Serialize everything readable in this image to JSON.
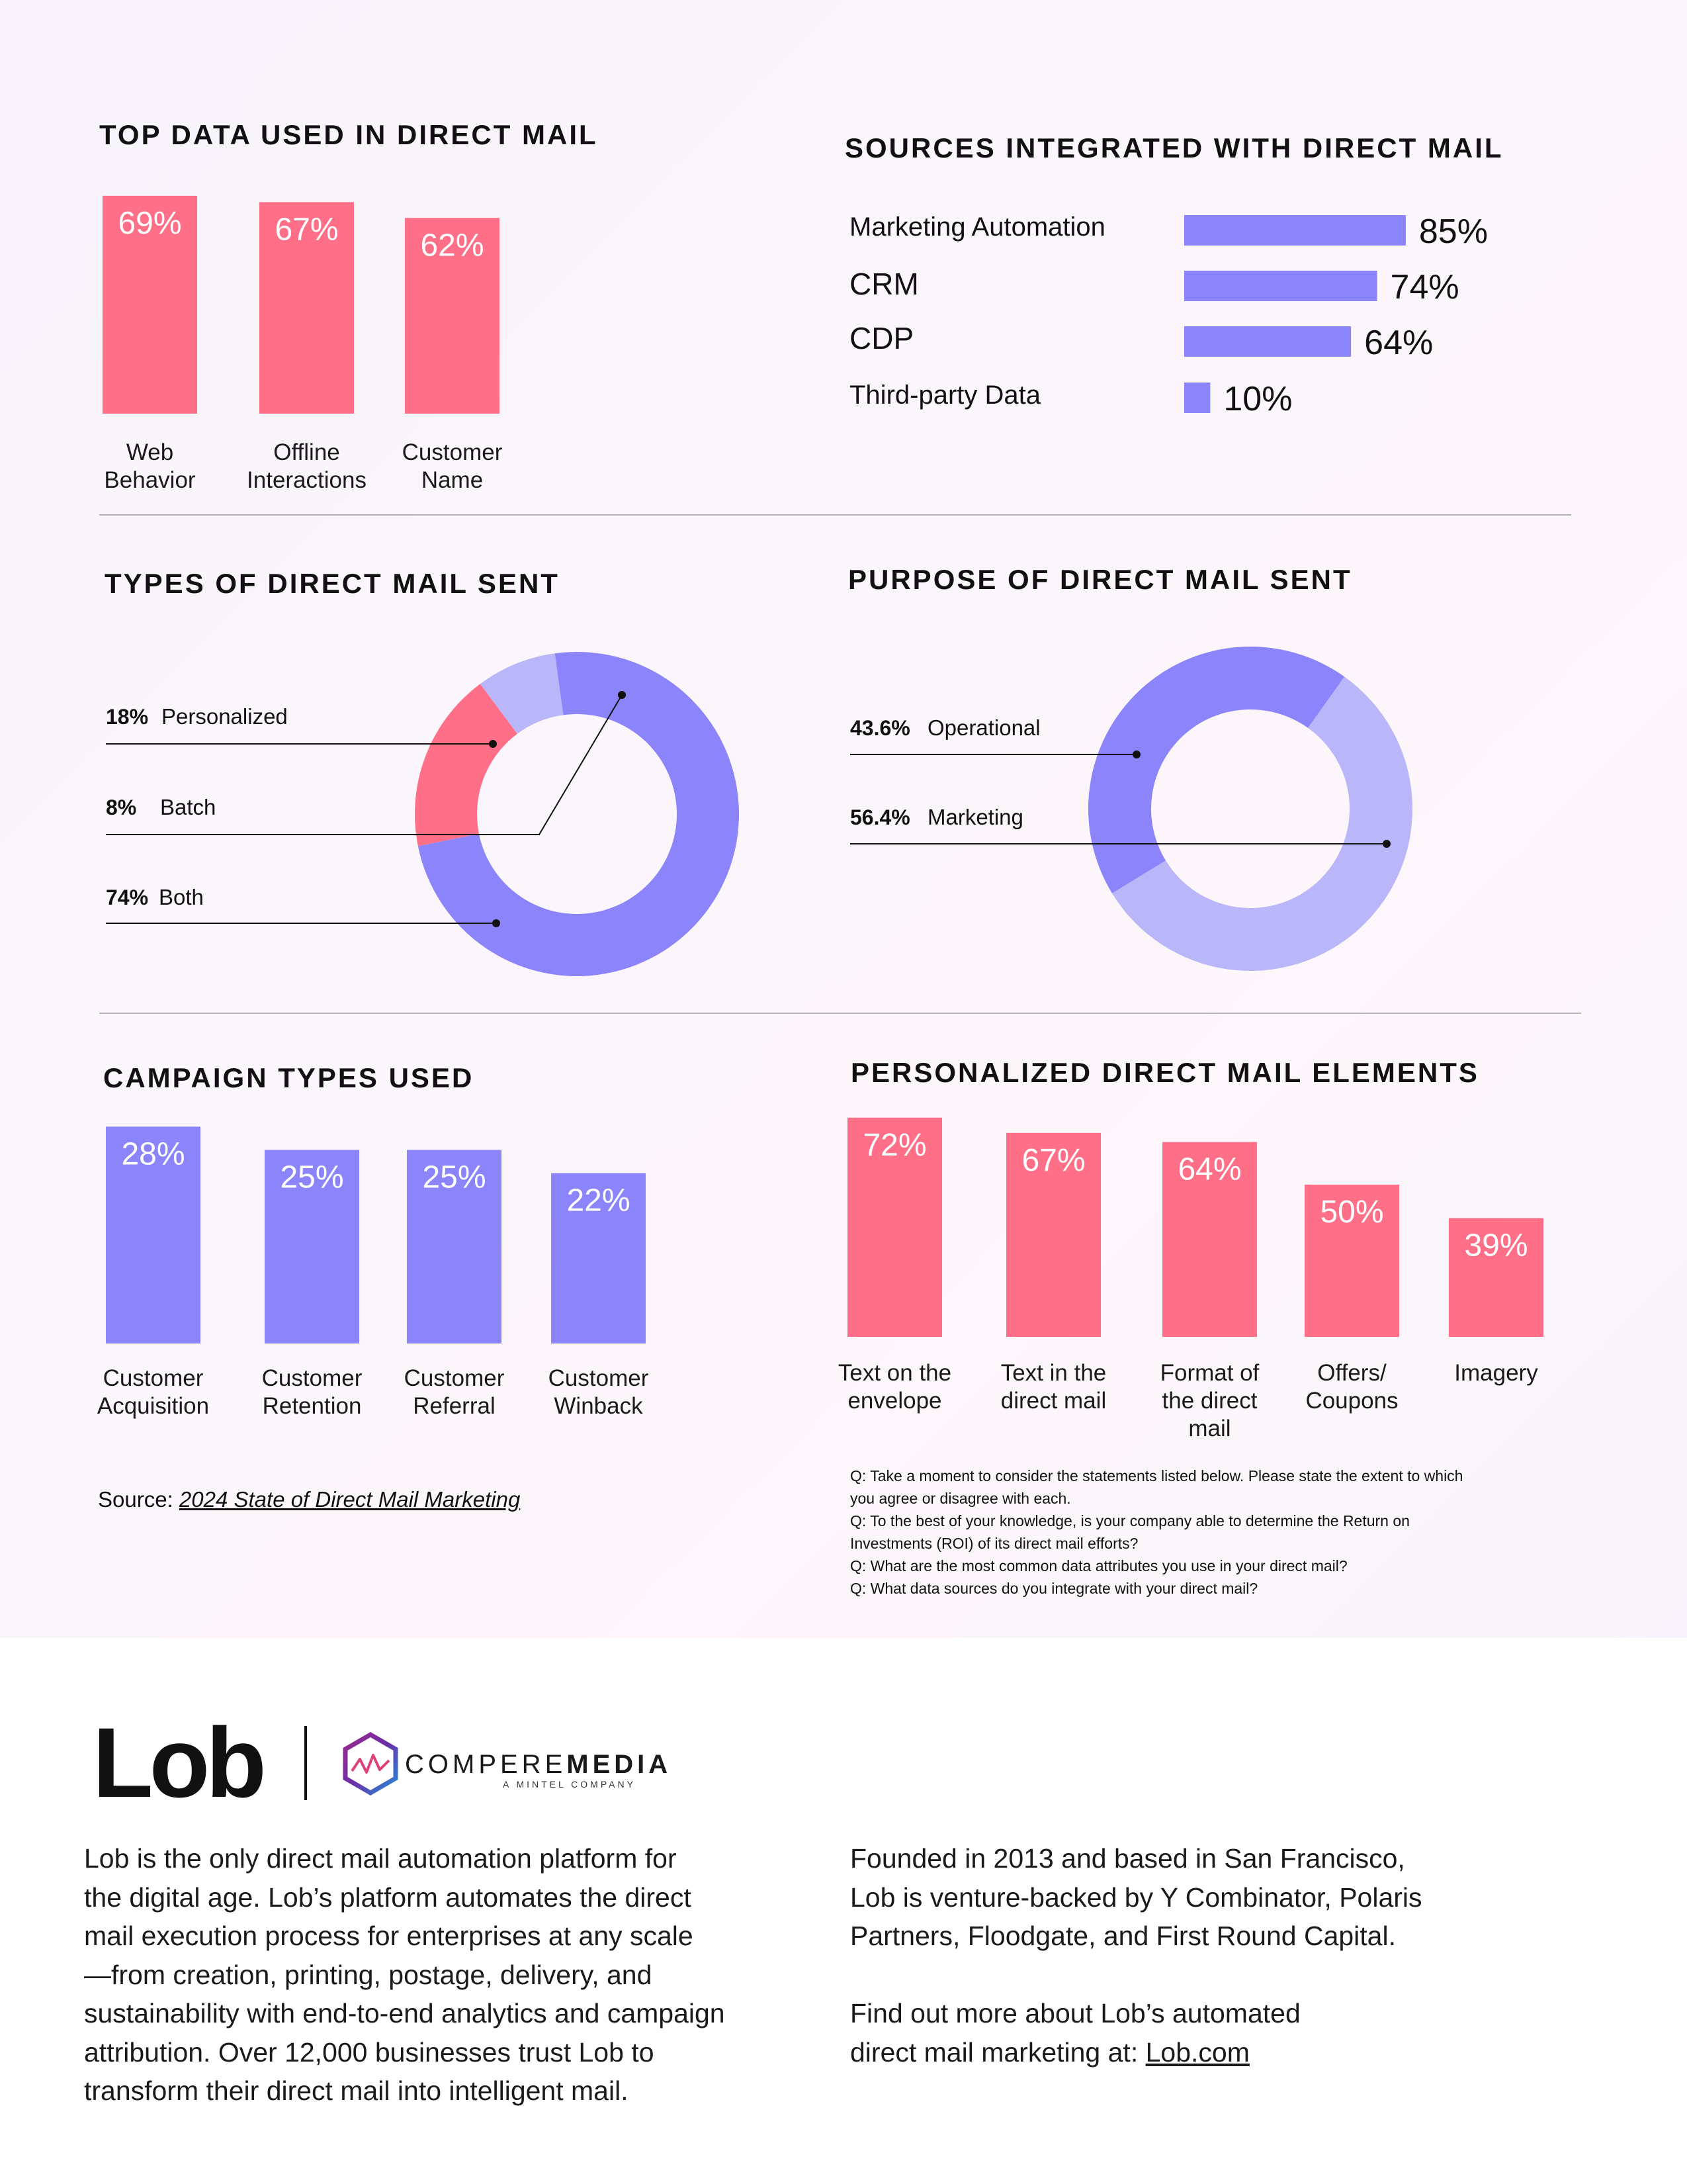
{
  "colors": {
    "pink": "#ff7088",
    "purple": "#8b84fa",
    "lavender": "#bab6fa",
    "text": "#111111"
  },
  "titles": {
    "top_data": "TOP DATA USED IN DIRECT MAIL",
    "sources": "SOURCES INTEGRATED WITH DIRECT MAIL",
    "types": "TYPES OF DIRECT MAIL SENT",
    "purpose": "PURPOSE OF DIRECT MAIL SENT",
    "campaign": "CAMPAIGN TYPES USED",
    "elements": "PERSONALIZED DIRECT MAIL ELEMENTS"
  },
  "chart_data": [
    {
      "id": "top_data",
      "type": "bar",
      "title": "TOP DATA USED IN DIRECT MAIL",
      "categories": [
        [
          "Web",
          "Behavior"
        ],
        [
          "Offline",
          "Interactions"
        ],
        [
          "Customer",
          "Name"
        ]
      ],
      "values": [
        69,
        67,
        62
      ],
      "labels": [
        "69%",
        "67%",
        "62%"
      ]
    },
    {
      "id": "sources",
      "type": "bar",
      "orientation": "horizontal",
      "title": "SOURCES INTEGRATED WITH DIRECT MAIL",
      "categories": [
        "Marketing Automation",
        "CRM",
        "CDP",
        "Third-party Data"
      ],
      "values": [
        85,
        74,
        64,
        10
      ],
      "labels": [
        "85%",
        "74%",
        "64%",
        "10%"
      ]
    },
    {
      "id": "types",
      "type": "pie",
      "donut": true,
      "title": "TYPES OF DIRECT MAIL SENT",
      "slices": [
        {
          "name": "Personalized",
          "pct_label": "18%",
          "value": 18,
          "color": "#ff7088"
        },
        {
          "name": "Batch",
          "pct_label": "8%",
          "value": 8,
          "color": "#bab6fa"
        },
        {
          "name": "Both",
          "pct_label": "74%",
          "value": 74,
          "color": "#8b84fa"
        }
      ]
    },
    {
      "id": "purpose",
      "type": "pie",
      "donut": true,
      "title": "PURPOSE OF DIRECT MAIL SENT",
      "slices": [
        {
          "name": "Operational",
          "pct_label": "43.6%",
          "value": 43.6,
          "color": "#8b84fa"
        },
        {
          "name": "Marketing",
          "pct_label": "56.4%",
          "value": 56.4,
          "color": "#bab6fa"
        }
      ]
    },
    {
      "id": "campaign",
      "type": "bar",
      "title": "CAMPAIGN TYPES USED",
      "categories": [
        [
          "Customer",
          "Acquisition"
        ],
        [
          "Customer",
          "Retention"
        ],
        [
          "Customer",
          "Referral"
        ],
        [
          "Customer",
          "Winback"
        ]
      ],
      "values": [
        28,
        25,
        25,
        22
      ],
      "labels": [
        "28%",
        "25%",
        "25%",
        "22%"
      ]
    },
    {
      "id": "elements",
      "type": "bar",
      "title": "PERSONALIZED DIRECT MAIL ELEMENTS",
      "categories": [
        [
          "Text on the",
          "envelope"
        ],
        [
          "Text in the",
          "direct mail"
        ],
        [
          "Format of",
          "the direct",
          "mail"
        ],
        [
          "Offers/",
          "Coupons"
        ],
        [
          "Imagery"
        ]
      ],
      "values": [
        72,
        67,
        64,
        50,
        39
      ],
      "labels": [
        "72%",
        "67%",
        "64%",
        "50%",
        "39%"
      ]
    }
  ],
  "source": {
    "prefix": "Source: ",
    "link_text": "2024 State of Direct Mail Marketing"
  },
  "questions": [
    "Q: Take a moment to consider the statements listed below. Please state the extent to which",
    "you agree or disagree with each.",
    "Q: To the best of your knowledge, is your company able to determine the Return on",
    "Investments (ROI) of its direct mail efforts?",
    "Q: What are the most common data attributes you use in your direct mail?",
    "Q: What data sources do you integrate with your direct mail?"
  ],
  "footer": {
    "lob_logo": "Lob",
    "cm_name_light": "COMPERE",
    "cm_name_bold": "MEDIA",
    "cm_sub": "A MINTEL COMPANY",
    "left_lines": [
      "Lob is the only direct mail automation platform for",
      "the digital age. Lob’s platform automates the direct",
      "mail execution process for enterprises at any scale",
      "—from creation, printing, postage, delivery, and",
      "sustainability with end-to-end analytics and campaign",
      "attribution. Over 12,000 businesses trust Lob to",
      "transform their direct mail into intelligent mail."
    ],
    "right_lines_1": [
      "Founded in 2013 and based in San Francisco,",
      "Lob is venture-backed by Y Combinator, Polaris",
      "Partners, Floodgate, and First Round Capital."
    ],
    "right_lines_2": [
      "Find out more about Lob’s automated"
    ],
    "cta_prefix": "direct mail marketing at: ",
    "cta_link": "Lob.com"
  }
}
